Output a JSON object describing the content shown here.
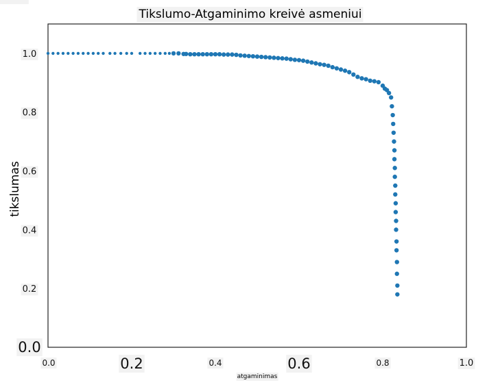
{
  "chart_data": {
    "type": "scatter",
    "title": "Tikslumo-Atgaminimo kreivė asmeniui",
    "xlabel": "atgaminimas",
    "ylabel": "tikslumas",
    "xlim": [
      0.0,
      1.0
    ],
    "ylim": [
      0.0,
      1.1
    ],
    "x_ticks": [
      "0.0",
      "0.2",
      "0.4",
      "0.6",
      "0.8",
      "1.0"
    ],
    "y_ticks": [
      "0.0",
      "0.2",
      "0.4",
      "0.6",
      "0.8",
      "1.0"
    ],
    "grid": false,
    "series": [
      {
        "color": "#1f77b4",
        "x": [
          0.0,
          0.012,
          0.024,
          0.036,
          0.048,
          0.06,
          0.072,
          0.084,
          0.096,
          0.108,
          0.12,
          0.132,
          0.148,
          0.16,
          0.174,
          0.188,
          0.2,
          0.22,
          0.232,
          0.244,
          0.256,
          0.268,
          0.28,
          0.29,
          0.3,
          0.312,
          0.324,
          0.33,
          0.34,
          0.35,
          0.36,
          0.37,
          0.38,
          0.39,
          0.4,
          0.41,
          0.42,
          0.43,
          0.44,
          0.45,
          0.46,
          0.47,
          0.48,
          0.49,
          0.5,
          0.51,
          0.52,
          0.53,
          0.54,
          0.55,
          0.56,
          0.57,
          0.58,
          0.59,
          0.6,
          0.61,
          0.62,
          0.63,
          0.64,
          0.65,
          0.66,
          0.67,
          0.68,
          0.69,
          0.7,
          0.71,
          0.72,
          0.73,
          0.74,
          0.75,
          0.76,
          0.77,
          0.78,
          0.79,
          0.8,
          0.805,
          0.81,
          0.815,
          0.82,
          0.822,
          0.824,
          0.825,
          0.826,
          0.827,
          0.828,
          0.828,
          0.829,
          0.829,
          0.83,
          0.83,
          0.831,
          0.831,
          0.832,
          0.832,
          0.833,
          0.833,
          0.834,
          0.834,
          0.835,
          0.835
        ],
        "y": [
          1.0,
          1.0,
          1.0,
          1.0,
          1.0,
          1.0,
          1.0,
          1.0,
          1.0,
          1.0,
          1.0,
          1.0,
          1.0,
          1.0,
          1.0,
          1.0,
          1.0,
          1.0,
          1.0,
          1.0,
          1.0,
          1.0,
          1.0,
          1.0,
          1.0,
          1.0,
          0.998,
          0.998,
          0.997,
          0.997,
          0.997,
          0.997,
          0.997,
          0.997,
          0.997,
          0.997,
          0.996,
          0.996,
          0.996,
          0.995,
          0.993,
          0.992,
          0.991,
          0.99,
          0.989,
          0.988,
          0.987,
          0.986,
          0.985,
          0.984,
          0.983,
          0.982,
          0.98,
          0.978,
          0.977,
          0.975,
          0.972,
          0.969,
          0.966,
          0.963,
          0.961,
          0.958,
          0.953,
          0.949,
          0.945,
          0.941,
          0.936,
          0.928,
          0.92,
          0.915,
          0.912,
          0.907,
          0.905,
          0.902,
          0.89,
          0.88,
          0.875,
          0.865,
          0.85,
          0.82,
          0.79,
          0.76,
          0.73,
          0.7,
          0.67,
          0.64,
          0.61,
          0.58,
          0.55,
          0.52,
          0.49,
          0.46,
          0.43,
          0.4,
          0.36,
          0.33,
          0.29,
          0.25,
          0.21,
          0.18
        ]
      }
    ]
  }
}
